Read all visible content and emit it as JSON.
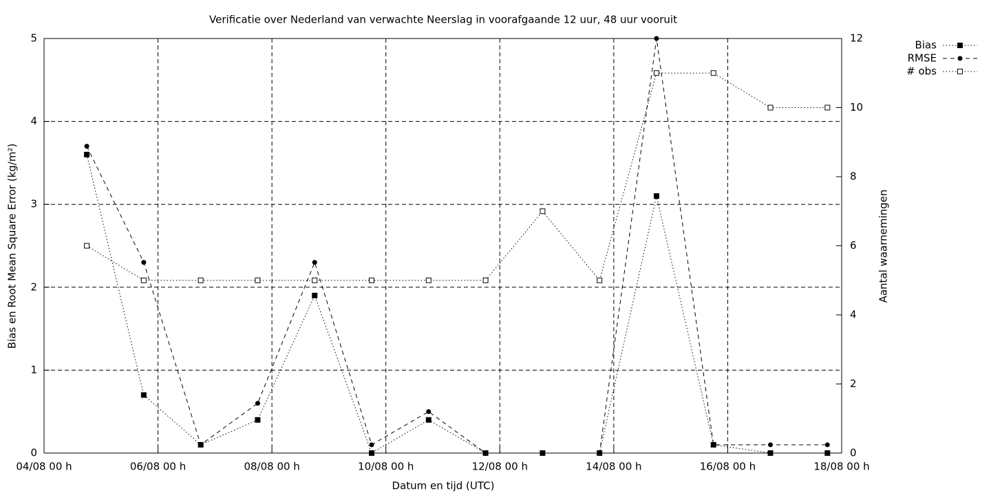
{
  "chart_data": {
    "type": "line",
    "title": "Verificatie over Nederland van verwachte Neerslag in voorafgaande 12 uur, 48 uur vooruit",
    "x_label": "Datum en tijd (UTC)",
    "y_label": "Bias en Root Mean Square Error (kg/m²)",
    "y2_label": "Aantal waarnemingen",
    "x": [
      "04/08 18 h",
      "05/08 18 h",
      "06/08 18 h",
      "07/08 18 h",
      "08/08 18 h",
      "09/08 18 h",
      "10/08 18 h",
      "11/08 18 h",
      "12/08 18 h",
      "13/08 18 h",
      "14/08 18 h",
      "15/08 18 h",
      "16/08 18 h",
      "17/08 18 h"
    ],
    "xlim": [
      "04/08 00 h",
      "18/08 00 h"
    ],
    "xticks": [
      "04/08 00 h",
      "06/08 00 h",
      "08/08 00 h",
      "10/08 00 h",
      "12/08 00 h",
      "14/08 00 h",
      "16/08 00 h",
      "18/08 00 h"
    ],
    "ylim": [
      0,
      5
    ],
    "yticks": [
      0,
      1,
      2,
      3,
      4,
      5
    ],
    "y2lim": [
      0,
      12
    ],
    "y2ticks": [
      0,
      2,
      4,
      6,
      8,
      10,
      12
    ],
    "grid": true,
    "legend": "top-right-outside",
    "series": [
      {
        "name": "Bias",
        "color": "#000000",
        "line_style": "dotted",
        "marker": "filled-square",
        "values": [
          3.6,
          0.7,
          0.1,
          0.4,
          1.9,
          0,
          0.4,
          0,
          0,
          0,
          3.1,
          0.1,
          0,
          0
        ]
      },
      {
        "name": "RMSE",
        "color": "#000000",
        "line_style": "dashed",
        "marker": "filled-circle",
        "values": [
          3.7,
          2.3,
          0.1,
          0.6,
          2.3,
          0.1,
          0.5,
          0,
          0,
          0,
          5.0,
          0.1,
          0.1,
          0.1
        ]
      },
      {
        "name": "# obs",
        "color": "#000000",
        "line_style": "dotted",
        "marker": "open-square",
        "axis": "y2",
        "values": [
          6,
          5,
          5,
          5,
          5,
          5,
          5,
          5,
          7,
          5,
          11,
          11,
          10,
          10
        ]
      }
    ]
  }
}
